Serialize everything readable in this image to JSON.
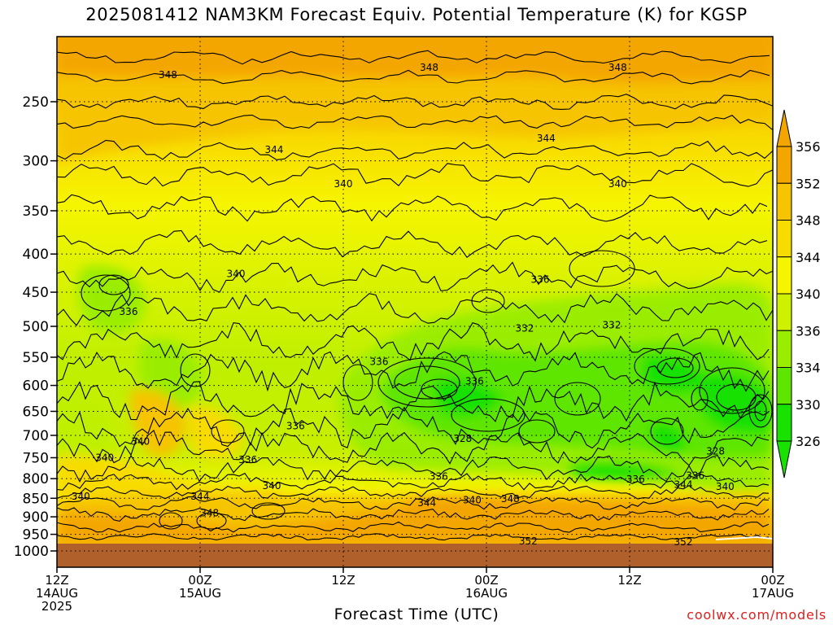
{
  "title": "2025081412 NAM3KM Forecast Equiv. Potential Temperature (K) for KGSP",
  "xlabel": "Forecast Time (UTC)",
  "credit": "coolwx.com/models",
  "chart_data": {
    "type": "heatmap",
    "y_ticks": [
      250,
      300,
      350,
      400,
      450,
      500,
      550,
      600,
      650,
      700,
      750,
      800,
      850,
      900,
      950,
      1000
    ],
    "ylim": [
      200,
      1020
    ],
    "y_scale": "log",
    "x_ticks": [
      {
        "hour": 0,
        "lines": [
          "12Z",
          "14AUG",
          "2025"
        ]
      },
      {
        "hour": 12,
        "lines": [
          "00Z",
          "15AUG"
        ]
      },
      {
        "hour": 24,
        "lines": [
          "12Z"
        ]
      },
      {
        "hour": 36,
        "lines": [
          "00Z",
          "16AUG"
        ]
      },
      {
        "hour": 48,
        "lines": [
          "12Z"
        ]
      },
      {
        "hour": 60,
        "lines": [
          "00Z",
          "17AUG"
        ]
      }
    ],
    "xlim": [
      0,
      60
    ],
    "grid": true,
    "colorbar": {
      "labels": [
        326,
        330,
        334,
        336,
        340,
        344,
        348,
        352,
        356
      ],
      "colors": [
        "#19e100",
        "#5fe600",
        "#9bed00",
        "#cdf100",
        "#f6f500",
        "#f8dc00",
        "#f6c400",
        "#f4a600"
      ]
    },
    "contour_labels": [
      {
        "text": "348",
        "hour": 9.3,
        "p": 230
      },
      {
        "text": "348",
        "hour": 31.2,
        "p": 225
      },
      {
        "text": "348",
        "hour": 47.0,
        "p": 225
      },
      {
        "text": "344",
        "hour": 18.2,
        "p": 290
      },
      {
        "text": "344",
        "hour": 41.0,
        "p": 280
      },
      {
        "text": "340",
        "hour": 24.0,
        "p": 322
      },
      {
        "text": "340",
        "hour": 47.0,
        "p": 322
      },
      {
        "text": "340",
        "hour": 15.0,
        "p": 425
      },
      {
        "text": "336",
        "hour": 6.0,
        "p": 478
      },
      {
        "text": "336",
        "hour": 40.5,
        "p": 433
      },
      {
        "text": "332",
        "hour": 39.2,
        "p": 503
      },
      {
        "text": "332",
        "hour": 46.5,
        "p": 498
      },
      {
        "text": "336",
        "hour": 27.0,
        "p": 558
      },
      {
        "text": "336",
        "hour": 35.0,
        "p": 592
      },
      {
        "text": "336",
        "hour": 20.0,
        "p": 680
      },
      {
        "text": "328",
        "hour": 34.0,
        "p": 707
      },
      {
        "text": "328",
        "hour": 55.2,
        "p": 735
      },
      {
        "text": "340",
        "hour": 7.0,
        "p": 713
      },
      {
        "text": "340",
        "hour": 4.0,
        "p": 750
      },
      {
        "text": "336",
        "hour": 16.0,
        "p": 755
      },
      {
        "text": "336",
        "hour": 32.0,
        "p": 795
      },
      {
        "text": "336",
        "hour": 48.5,
        "p": 802
      },
      {
        "text": "336",
        "hour": 53.5,
        "p": 793
      },
      {
        "text": "340",
        "hour": 18.0,
        "p": 818
      },
      {
        "text": "340",
        "hour": 2.0,
        "p": 845
      },
      {
        "text": "344",
        "hour": 12.0,
        "p": 845
      },
      {
        "text": "344",
        "hour": 31.0,
        "p": 862
      },
      {
        "text": "340",
        "hour": 34.8,
        "p": 855
      },
      {
        "text": "348",
        "hour": 38.0,
        "p": 852
      },
      {
        "text": "344",
        "hour": 52.5,
        "p": 815
      },
      {
        "text": "340",
        "hour": 56.0,
        "p": 820
      },
      {
        "text": "348",
        "hour": 12.8,
        "p": 890
      },
      {
        "text": "352",
        "hour": 39.5,
        "p": 970
      },
      {
        "text": "352",
        "hour": 52.5,
        "p": 973
      }
    ]
  }
}
